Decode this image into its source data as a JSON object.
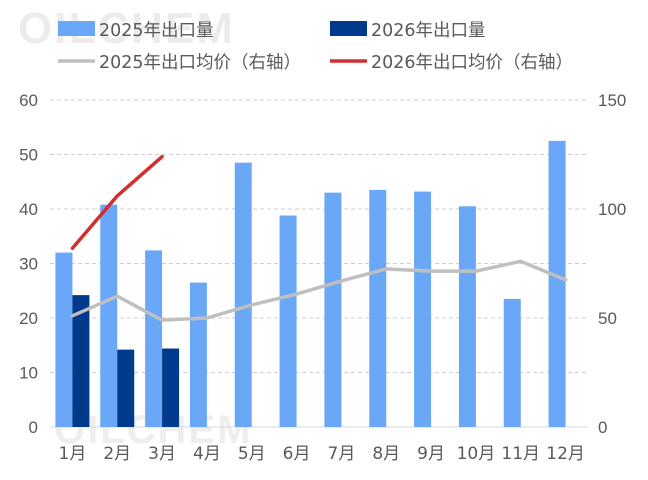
{
  "watermark": "OILCHEM",
  "chart_data": {
    "type": "bar",
    "categories": [
      "1月",
      "2月",
      "3月",
      "4月",
      "5月",
      "6月",
      "7月",
      "8月",
      "9月",
      "10月",
      "11月",
      "12月"
    ],
    "series": [
      {
        "name": "2025年出口量",
        "type": "bar",
        "axis": "left",
        "color": "#6aa8f7",
        "values": [
          32,
          40.8,
          32.4,
          26.5,
          48.5,
          38.8,
          43,
          43.5,
          43.2,
          40.5,
          23.5,
          52.5
        ]
      },
      {
        "name": "2026年出口量",
        "type": "bar",
        "axis": "left",
        "color": "#003a8c",
        "values": [
          24.2,
          14.2,
          14.4,
          null,
          null,
          null,
          null,
          null,
          null,
          null,
          null,
          null
        ]
      },
      {
        "name": "2025年出口均价（右轴）",
        "type": "line",
        "axis": "right",
        "color": "#bfbfbf",
        "values": [
          51,
          60,
          49,
          50,
          56,
          61,
          67,
          72.5,
          71.5,
          71.5,
          76,
          67.5
        ]
      },
      {
        "name": "2026年出口均价（右轴）",
        "type": "line",
        "axis": "right",
        "color": "#d03030",
        "values": [
          82,
          106,
          124,
          null,
          null,
          null,
          null,
          null,
          null,
          null,
          null,
          null
        ]
      }
    ],
    "yleft": {
      "min": 0,
      "max": 60,
      "ticks": [
        "0",
        "10",
        "20",
        "30",
        "40",
        "50",
        "60"
      ]
    },
    "yright": {
      "min": 0,
      "max": 150,
      "ticks": [
        "0",
        "50",
        "100",
        "150"
      ]
    },
    "grid": true,
    "legend_position": "top"
  }
}
